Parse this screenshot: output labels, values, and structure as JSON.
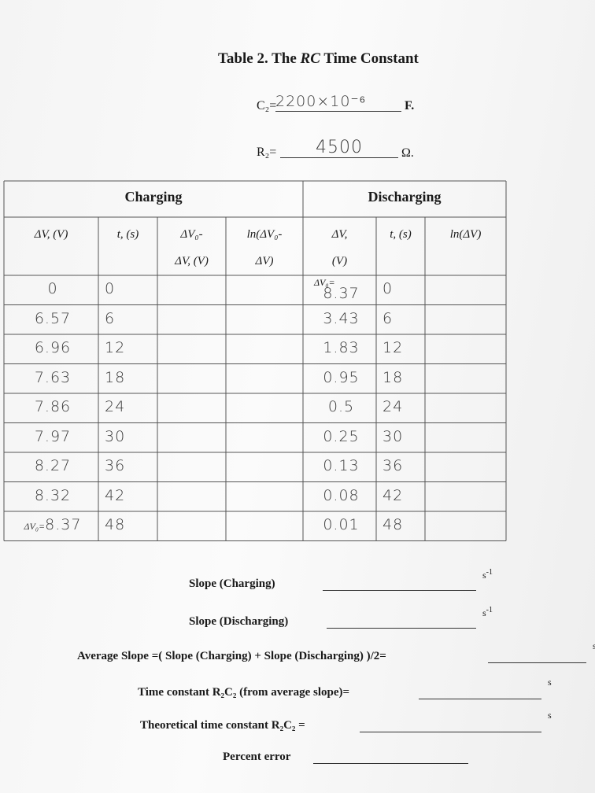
{
  "header": {
    "title": {
      "prefix": "Table 2. The ",
      "italic": "RC",
      "suffix": " Time Constant"
    },
    "capacitance": {
      "label": "C₂=",
      "value": "2200×10⁻⁶",
      "unit": "F."
    },
    "resistance": {
      "label": "R₂=",
      "value": "4500",
      "unit": "Ω."
    }
  },
  "table": {
    "groups": [
      "Charging",
      "Discharging"
    ],
    "columns": [
      [
        "ΔV, (V)"
      ],
      [
        "t, (s)"
      ],
      [
        "ΔV₀-",
        "ΔV, (V)"
      ],
      [
        "ln(ΔV₀-",
        "ΔV)"
      ],
      [
        "ΔV,",
        "(V)"
      ],
      [
        "t, (s)"
      ],
      [
        "ln(ΔV)"
      ]
    ],
    "charging_final_label": "ΔV₀=",
    "discharging_initial_label": "ΔV₀=",
    "rows": [
      [
        0,
        0,
        8.37,
        0
      ],
      [
        6.57,
        6,
        3.43,
        6
      ],
      [
        6.96,
        12,
        1.83,
        12
      ],
      [
        7.63,
        18,
        0.95,
        18
      ],
      [
        7.86,
        24,
        0.5,
        24
      ],
      [
        7.97,
        30,
        0.25,
        30
      ],
      [
        8.27,
        36,
        0.13,
        36
      ],
      [
        8.32,
        42,
        0.08,
        42
      ],
      [
        8.37,
        48,
        0.01,
        48
      ]
    ]
  },
  "questions": [
    {
      "label": "Slope (Charging)",
      "unit": "s",
      "exponent": "-1"
    },
    {
      "label": "Slope (Discharging)",
      "unit": "s",
      "exponent": "-1"
    },
    {
      "label": "Average Slope =( Slope (Charging) + Slope (Discharging) )/2=",
      "unit": "s"
    },
    {
      "label": "Time constant R₂C₂  (from average slope)=",
      "unit": "s"
    },
    {
      "label": "Theoretical time constant R₂C₂  =",
      "unit": "s"
    },
    {
      "label": "Percent error"
    }
  ]
}
